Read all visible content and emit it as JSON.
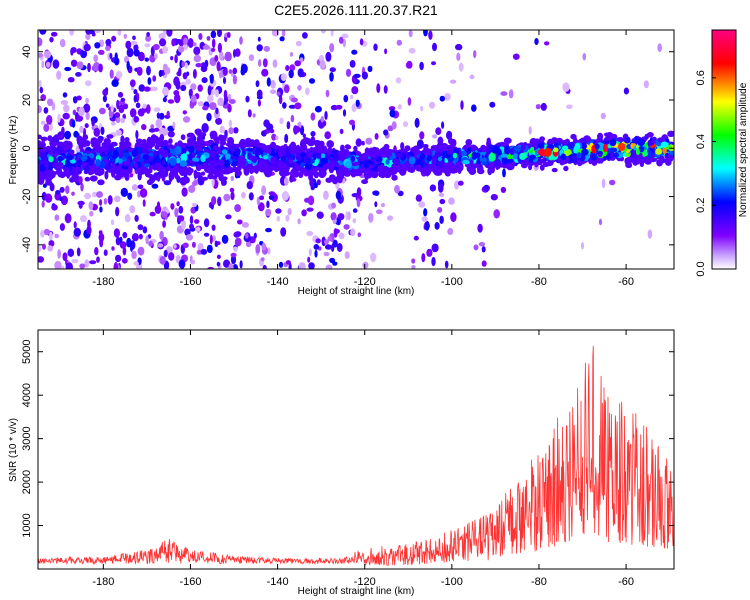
{
  "title": "C2E5.2026.111.20.37.R21",
  "chart_data": [
    {
      "type": "heatmap",
      "xlabel": "Height of straight line (km)",
      "ylabel": "Frequency (Hz)",
      "xlim": [
        -195,
        -49
      ],
      "ylim": [
        -50,
        49
      ],
      "xticks": [
        -180,
        -160,
        -140,
        -120,
        -100,
        -80,
        -60
      ],
      "yticks": [
        -40,
        -20,
        0,
        20,
        40
      ],
      "grid": false,
      "colorbar": {
        "label": "Normalized spectral amplitude",
        "range": [
          0,
          0.75
        ],
        "ticks": [
          0.0,
          0.2,
          0.4,
          0.6
        ],
        "colormap": [
          "#ffffff",
          "#8000ff",
          "#0000ff",
          "#00ffff",
          "#00ff00",
          "#ffff00",
          "#ff0000",
          "#ff0080"
        ]
      },
      "band": {
        "description_points": [
          [
            -195,
            -5
          ],
          [
            -170,
            -4
          ],
          [
            -150,
            -3
          ],
          [
            -120,
            -6
          ],
          [
            -100,
            -4
          ],
          [
            -80,
            -2
          ],
          [
            -60,
            0
          ],
          [
            -50,
            0
          ]
        ],
        "peak_amplitude": 0.72
      }
    },
    {
      "type": "line",
      "xlabel": "Height of straight line (km)",
      "ylabel": "SNR (10 * v/v)",
      "xlim": [
        -195,
        -49
      ],
      "ylim": [
        0,
        5500
      ],
      "xticks": [
        -180,
        -160,
        -140,
        -120,
        -100,
        -80,
        -60
      ],
      "yticks": [
        1000,
        2000,
        3000,
        4000,
        5000
      ],
      "grid": false,
      "color": "#ff3333",
      "envelope": {
        "x": [
          -195,
          -180,
          -170,
          -165,
          -160,
          -150,
          -140,
          -125,
          -120,
          -110,
          -100,
          -90,
          -85,
          -80,
          -75,
          -70,
          -67,
          -65,
          -60,
          -55,
          -52,
          -50
        ],
        "y": [
          250,
          300,
          450,
          700,
          450,
          300,
          250,
          250,
          500,
          600,
          900,
          1400,
          2200,
          2800,
          3600,
          4600,
          5300,
          4200,
          3800,
          3400,
          3000,
          2400
        ]
      }
    }
  ]
}
